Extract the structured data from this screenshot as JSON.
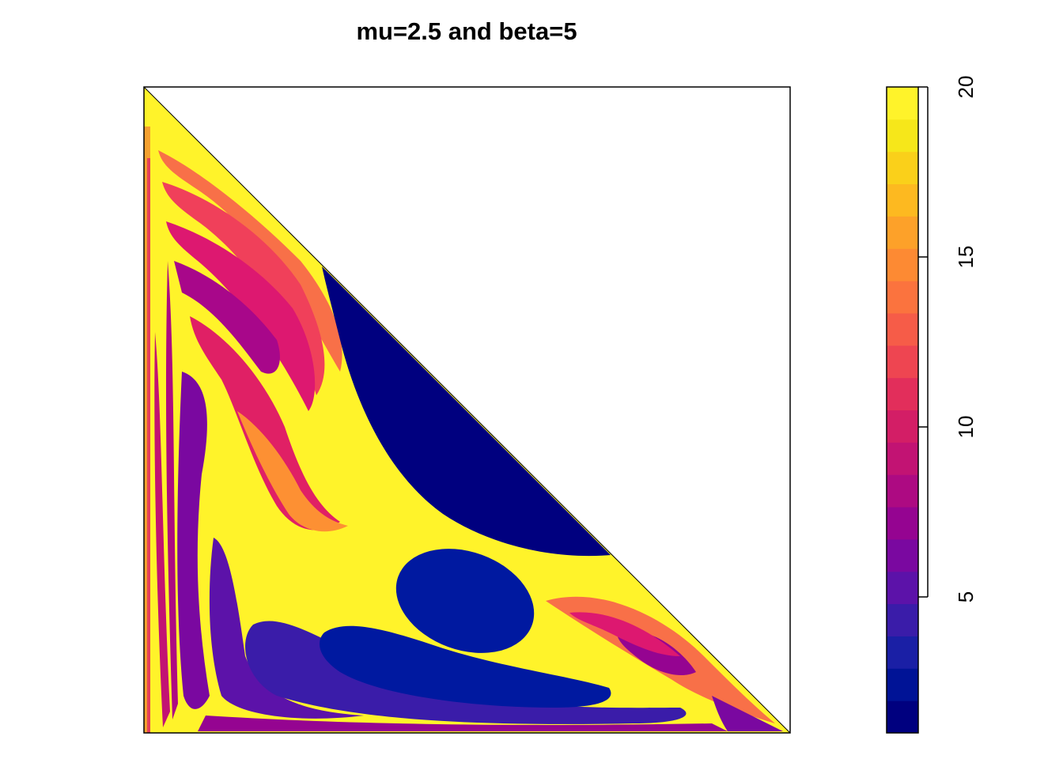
{
  "chart_data": {
    "type": "heatmap",
    "title": "mu=2.5 and beta=5",
    "xlabel": "",
    "ylabel": "",
    "domain": "lower-left triangle (x + y <= 1)",
    "colorbar": {
      "min": 1,
      "max": 20,
      "ticks": [
        5,
        10,
        15,
        20
      ],
      "tick_labels": [
        "5",
        "10",
        "15",
        "20"
      ],
      "palette": [
        "#00007F",
        "#001396",
        "#1A1FA5",
        "#3A1CA9",
        "#5C12A9",
        "#7A08A0",
        "#950491",
        "#AD0A82",
        "#C21373",
        "#D31E66",
        "#E22E5B",
        "#EE4551",
        "#F65C48",
        "#FB733E",
        "#FD8A33",
        "#FDA129",
        "#FDB920",
        "#FAD01A",
        "#F6E71A",
        "#FFF32A"
      ]
    },
    "regions": [
      {
        "name": "upper-blue-lobe",
        "value": 1
      },
      {
        "name": "center-ellipse",
        "value": 2
      },
      {
        "name": "lower-band",
        "value": 3
      },
      {
        "name": "bottom-band",
        "value": 4
      },
      {
        "name": "left-arm",
        "value": 6
      },
      {
        "name": "left-inner-arm",
        "value": 7
      },
      {
        "name": "spiral-arm",
        "value": 10
      },
      {
        "name": "corner-swirl",
        "value": 9
      },
      {
        "name": "yellow-field",
        "value": 20
      }
    ],
    "grid": false,
    "legend": "right"
  }
}
